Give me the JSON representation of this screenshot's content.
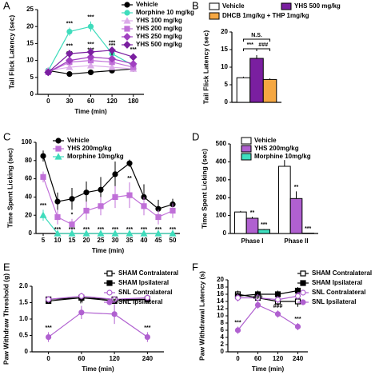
{
  "chart_data": [
    {
      "type": "line",
      "panel": "A",
      "ylabel": "Tail Flick Latency (sec)",
      "xlabel": "Time (min)",
      "categories": [
        "0",
        "30",
        "60",
        "120",
        "180"
      ],
      "ylim": [
        0,
        25
      ],
      "yticks": [
        0,
        5,
        10,
        15,
        20,
        25
      ],
      "series": [
        {
          "name": "Vehicle",
          "color": "#000000",
          "marker": "circle",
          "filled": true,
          "values": [
            7,
            6,
            6.5,
            7,
            7.5
          ],
          "errors": [
            0.3,
            0.4,
            0.4,
            0.4,
            0.5
          ],
          "significance": [
            null,
            null,
            null,
            null,
            null
          ]
        },
        {
          "name": "Morphine 10 mg/kg",
          "color": "#3fdcbc",
          "marker": "circle",
          "filled": true,
          "values": [
            7,
            18.5,
            20,
            12,
            8.5
          ],
          "errors": [
            0.4,
            1.2,
            1.5,
            1.2,
            1
          ],
          "significance": [
            null,
            "***",
            "***",
            "***",
            null
          ]
        },
        {
          "name": "YHS 100 mg/kg",
          "color": "#dcaaea",
          "marker": "triangle",
          "filled": true,
          "values": [
            7,
            8,
            8.5,
            8,
            7.5
          ],
          "errors": [
            0.4,
            0.8,
            0.8,
            0.8,
            0.6
          ],
          "significance": [
            null,
            null,
            null,
            null,
            null
          ]
        },
        {
          "name": "YHS 200 mg/kg",
          "color": "#c070d8",
          "marker": "square",
          "filled": true,
          "values": [
            6.5,
            9.5,
            10,
            9.5,
            8
          ],
          "errors": [
            0.4,
            0.8,
            0.8,
            0.8,
            0.7
          ],
          "significance": [
            null,
            "*",
            "**",
            "*",
            null
          ]
        },
        {
          "name": "YHS 250 mg/kg",
          "color": "#a040c0",
          "marker": "diamond",
          "filled": true,
          "values": [
            6.5,
            10,
            11,
            10.5,
            9
          ],
          "errors": [
            0.4,
            0.8,
            0.9,
            0.9,
            0.8
          ],
          "significance": [
            null,
            "***",
            "***",
            "**",
            null
          ]
        },
        {
          "name": "YHS 500 mg/kg",
          "color": "#7a1fa0",
          "marker": "diamond",
          "filled": true,
          "values": [
            6.5,
            12,
            12.5,
            13,
            11
          ],
          "errors": [
            0.4,
            1,
            1,
            1,
            1
          ],
          "significance": [
            null,
            "***",
            "***",
            "***",
            "***"
          ]
        }
      ]
    },
    {
      "type": "bar",
      "panel": "B",
      "ylabel": "Tail Flick Latency (sec)",
      "ylim": [
        0,
        20
      ],
      "yticks": [
        0,
        5,
        10,
        15,
        20
      ],
      "series": [
        {
          "name": "Vehicle",
          "color": "#ffffff",
          "values": [
            7
          ],
          "errors": [
            0.3
          ]
        },
        {
          "name": "YHS 500 mg/kg",
          "color": "#7a1fa0",
          "values": [
            12.5
          ],
          "errors": [
            0.9
          ]
        },
        {
          "name": "DHCB 1mg/kg + THP 1mg/kg",
          "color": "#f5a742",
          "values": [
            6.5
          ],
          "errors": [
            0.3
          ]
        }
      ],
      "comparisons": [
        {
          "label": "***",
          "between": [
            0,
            1
          ]
        },
        {
          "label": "###",
          "between": [
            1,
            2
          ]
        },
        {
          "label": "N.S.",
          "between": [
            0,
            2
          ]
        }
      ]
    },
    {
      "type": "line",
      "panel": "C",
      "ylabel": "Time Spent Licking (sec)",
      "xlabel": "Time (min)",
      "categories": [
        "5",
        "10",
        "15",
        "20",
        "25",
        "30",
        "35",
        "40",
        "45",
        "50"
      ],
      "ylim": [
        0,
        100
      ],
      "yticks": [
        0,
        20,
        40,
        60,
        80,
        100
      ],
      "series": [
        {
          "name": "Vehicle",
          "color": "#000000",
          "marker": "circle",
          "filled": true,
          "values": [
            85,
            35,
            38,
            45,
            48,
            65,
            77,
            40,
            27,
            32
          ],
          "errors": [
            6,
            10,
            12,
            12,
            14,
            14,
            4,
            14,
            10,
            6
          ],
          "significance": [
            null,
            null,
            null,
            null,
            null,
            null,
            null,
            null,
            null,
            null
          ]
        },
        {
          "name": "YHS 200mg/kg",
          "color": "#c070d8",
          "marker": "square",
          "filled": true,
          "values": [
            62,
            18,
            10,
            25,
            30,
            40,
            42,
            30,
            18,
            25
          ],
          "errors": [
            6,
            8,
            6,
            10,
            10,
            12,
            14,
            10,
            8,
            8
          ],
          "significance": [
            null,
            null,
            "*",
            null,
            null,
            null,
            "**",
            null,
            null,
            null
          ]
        },
        {
          "name": "Morphine 10mg/kg",
          "color": "#3fdcbc",
          "marker": "triangle",
          "filled": true,
          "values": [
            20,
            0,
            0,
            0,
            0,
            0,
            0,
            0,
            0,
            0
          ],
          "errors": [
            6,
            0,
            0,
            0,
            0,
            0,
            0,
            0,
            0,
            0
          ],
          "significance": [
            "***",
            "***",
            "***",
            "***",
            "***",
            "***",
            "***",
            "***",
            "***",
            "***"
          ]
        }
      ]
    },
    {
      "type": "bar",
      "panel": "D",
      "ylabel": "Time Spent Licking (sec)",
      "categories": [
        "Phase I",
        "Phase II"
      ],
      "ylim": [
        0,
        500
      ],
      "yticks": [
        0,
        100,
        200,
        300,
        400,
        500
      ],
      "series": [
        {
          "name": "Vehicle",
          "color": "#ffffff",
          "values": [
            120,
            375
          ],
          "errors": [
            6,
            35
          ],
          "significance": [
            null,
            null
          ]
        },
        {
          "name": "YHS 200mg/kg",
          "color": "#b060d0",
          "values": [
            85,
            195
          ],
          "errors": [
            8,
            40
          ],
          "significance": [
            "**",
            "**"
          ]
        },
        {
          "name": "Morphine 10mg/kg",
          "color": "#40e0c0",
          "values": [
            22,
            2
          ],
          "errors": [
            3,
            1
          ],
          "significance": [
            "***",
            "***"
          ]
        }
      ]
    },
    {
      "type": "line",
      "panel": "E",
      "ylabel": "Paw Withdraw Threshold (g)",
      "xlabel": "Time (min)",
      "categories": [
        "0",
        "60",
        "120",
        "240"
      ],
      "ylim": [
        0,
        2
      ],
      "yticks": [
        0,
        0.5,
        {
          "value": 1,
          "label": "1.0"
        },
        1.5,
        {
          "value": 2,
          "label": "2.0"
        }
      ],
      "series": [
        {
          "name": "SHAM Contralateral",
          "color": "#000000",
          "marker": "square",
          "filled": false,
          "values": [
            1.6,
            1.65,
            1.6,
            1.6
          ],
          "errors": [
            0.08,
            0.08,
            0.08,
            0.1
          ],
          "significance": [
            null,
            null,
            null,
            null
          ]
        },
        {
          "name": "SHAM Ipsilateral",
          "color": "#000000",
          "marker": "square",
          "filled": true,
          "values": [
            1.55,
            1.65,
            1.55,
            1.6
          ],
          "errors": [
            0.08,
            0.08,
            0.08,
            0.1
          ],
          "significance": [
            null,
            null,
            null,
            null
          ]
        },
        {
          "name": "SNL Contralateral",
          "color": "#b060d0",
          "marker": "circle",
          "filled": false,
          "values": [
            1.6,
            1.7,
            1.6,
            1.65
          ],
          "errors": [
            0.1,
            0.1,
            0.1,
            0.1
          ],
          "significance": [
            null,
            null,
            null,
            null
          ]
        },
        {
          "name": "SNL Ipsilateral",
          "color": "#b060d0",
          "marker": "circle",
          "filled": true,
          "values": [
            0.45,
            1.2,
            1.15,
            0.45
          ],
          "errors": [
            0.15,
            0.2,
            0.3,
            0.15
          ],
          "significance": [
            "***",
            "#",
            "#",
            "***"
          ]
        }
      ]
    },
    {
      "type": "line",
      "panel": "F",
      "ylabel": "Paw Withdrawal Latency (s)",
      "xlabel": "Time (min)",
      "categories": [
        "0",
        "60",
        "120",
        "240"
      ],
      "ylim": [
        0,
        20
      ],
      "yticks": [
        0,
        2,
        4,
        6,
        8,
        10,
        12,
        14,
        16,
        18,
        20
      ],
      "series": [
        {
          "name": "SHAM Contralateral",
          "color": "#000000",
          "marker": "square",
          "filled": false,
          "values": [
            16,
            15,
            14,
            14
          ],
          "errors": [
            1,
            1,
            1,
            1.5
          ],
          "significance": [
            null,
            null,
            null,
            null
          ]
        },
        {
          "name": "SHAM Ipsilateral",
          "color": "#000000",
          "marker": "square",
          "filled": true,
          "values": [
            15.5,
            16,
            16,
            17
          ],
          "errors": [
            1,
            1,
            1,
            1
          ],
          "significance": [
            null,
            null,
            null,
            null
          ]
        },
        {
          "name": "SNL Contralateral",
          "color": "#b060d0",
          "marker": "circle",
          "filled": false,
          "values": [
            15,
            15,
            14.5,
            15.5
          ],
          "errors": [
            1,
            1,
            1,
            1
          ],
          "significance": [
            null,
            null,
            null,
            null
          ]
        },
        {
          "name": "SNL Ipsilateral",
          "color": "#b060d0",
          "marker": "circle",
          "filled": true,
          "values": [
            6,
            13,
            10.5,
            7
          ],
          "errors": [
            1,
            1,
            1,
            1
          ],
          "significance": [
            "***",
            "###",
            "###",
            "***"
          ]
        }
      ]
    }
  ]
}
